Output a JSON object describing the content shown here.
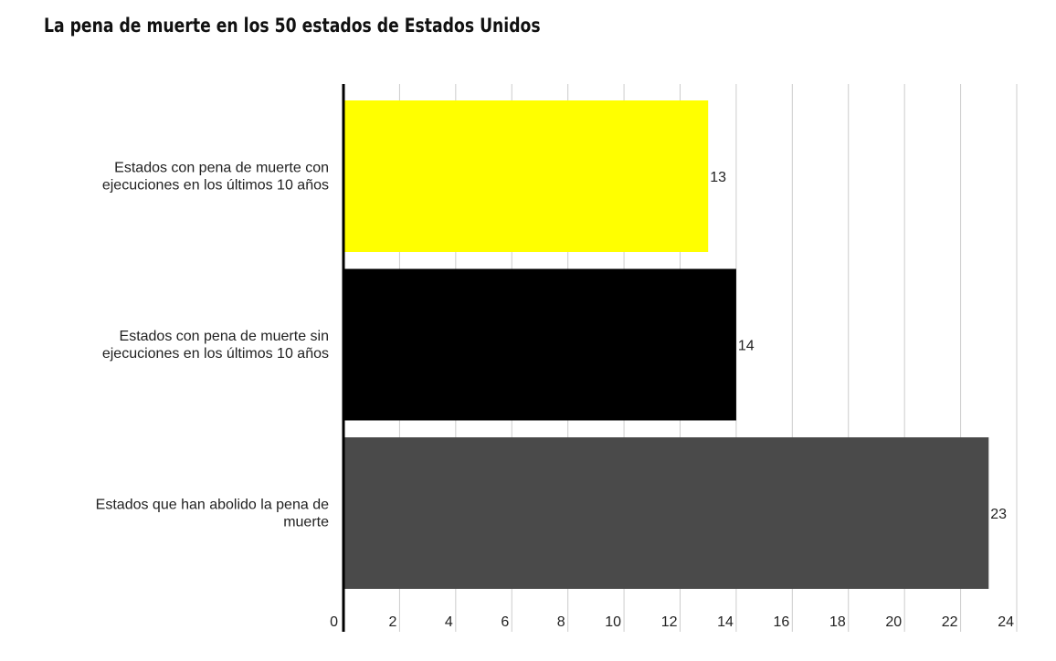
{
  "chart_data": {
    "type": "bar",
    "orientation": "horizontal",
    "title": "La pena de muerte en los 50 estados de Estados Unidos",
    "categories": [
      [
        "Estados con pena de muerte con",
        "ejecuciones en los últimos 10 años"
      ],
      [
        "Estados con pena de muerte sin",
        "ejecuciones en los últimos 10 años"
      ],
      [
        "Estados que han abolido la pena de",
        "muerte"
      ]
    ],
    "values": [
      13,
      14,
      23
    ],
    "data_labels": [
      "13",
      "14",
      "23"
    ],
    "colors": [
      "#ffff00",
      "#000000",
      "#4a4a4a"
    ],
    "xlim": [
      0,
      24
    ],
    "xticks": [
      "0",
      "2",
      "4",
      "6",
      "8",
      "10",
      "12",
      "14",
      "16",
      "18",
      "20",
      "22",
      "24"
    ],
    "grid": true,
    "grid_color": "#cccccc",
    "xlabel": "",
    "ylabel": ""
  }
}
